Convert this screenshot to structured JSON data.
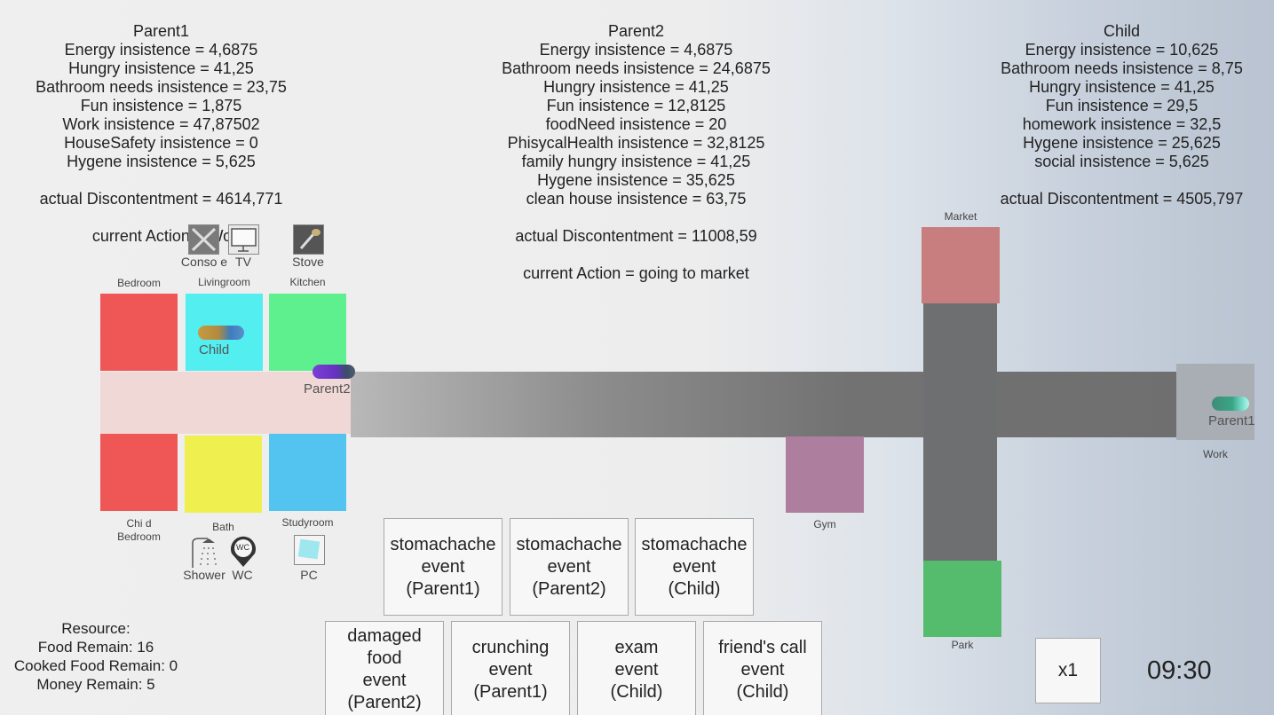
{
  "parent1": {
    "name": "Parent1",
    "lines": [
      "Energy insistence = 4,6875",
      "Hungry insistence = 41,25",
      "Bathroom needs insistence = 23,75",
      "Fun insistence = 1,875",
      "Work insistence = 47,87502",
      "HouseSafety insistence = 0",
      "Hygene insistence = 5,625"
    ],
    "discontentment": "actual Discontentment = 4614,771",
    "action": "current Action = Work"
  },
  "parent2": {
    "name": "Parent2",
    "lines": [
      "Energy insistence = 4,6875",
      "Bathroom needs insistence = 24,6875",
      "Hungry insistence = 41,25",
      "Fun insistence = 12,8125",
      "foodNeed insistence = 20",
      "PhisycalHealth insistence = 32,8125",
      "family hungry insistence = 41,25",
      "Hygene insistence = 35,625",
      "clean house insistence = 63,75"
    ],
    "discontentment": "actual Discontentment = 11008,59",
    "action": "current Action = going to market"
  },
  "child": {
    "name": "Child",
    "lines": [
      "Energy insistence = 10,625",
      "Bathroom needs insistence = 8,75",
      "Hungry insistence = 41,25",
      "Fun insistence = 29,5",
      "homework insistence = 32,5",
      "Hygene insistence = 25,625",
      "social insistence = 5,625"
    ],
    "discontentment": "actual Discontentment = 4505,797"
  },
  "house": {
    "rooms": {
      "bedroom": "Bedroom",
      "livingroom": "Livingroom",
      "kitchen": "Kitchen",
      "child_bedroom_1": "Chi d",
      "child_bedroom_2": "Bedroom",
      "bath": "Bath",
      "studyroom": "Studyroom"
    },
    "items": {
      "console": "Conso e",
      "tv": "TV",
      "stove": "Stove",
      "shower": "Shower",
      "wc": "WC",
      "wc_icon_text": "WC",
      "pc": "PC"
    }
  },
  "town": {
    "market": "Market",
    "gym": "Gym",
    "park": "Park",
    "work": "Work"
  },
  "agents": {
    "child": "Child",
    "parent2": "Parent2",
    "parent1": "Parent1"
  },
  "events": {
    "row1": [
      "stomachache\nevent\n(Parent1)",
      "stomachache\nevent\n(Parent2)",
      "stomachache\nevent\n(Child)"
    ],
    "row2": [
      "damaged\nfood\nevent\n(Parent2)",
      "crunching\nevent\n(Parent1)",
      "exam\nevent\n(Child)",
      "friend's call\nevent\n(Child)"
    ]
  },
  "resources": {
    "title": "Resource:",
    "food": "Food Remain: 16",
    "cooked": "Cooked Food Remain: 0",
    "money": "Money Remain: 5"
  },
  "controls": {
    "speed": "x1",
    "clock": "09:30"
  },
  "colors": {
    "bedroom": "#ef5656",
    "livingroom": "#52eef0",
    "kitchen": "#5ef08f",
    "child_bedroom": "#ef5656",
    "bath": "#efef50",
    "studyroom": "#52c4ef",
    "market": "#c87d7e",
    "gym": "#ad7e9e",
    "park": "#54bc6c",
    "work": "#a9adb4"
  }
}
